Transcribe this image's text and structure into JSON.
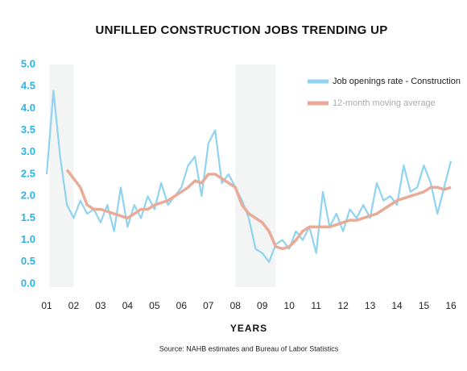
{
  "chart_data": {
    "type": "line",
    "title": "UNFILLED CONSTRUCTION JOBS TRENDING UP",
    "x_label": "YEARS",
    "source": "Source: NAHB estimates and Bureau of Labor Statistics",
    "xlim": [
      1,
      16
    ],
    "ylim": [
      0,
      5
    ],
    "xticks": [
      {
        "value": 1,
        "label": "01"
      },
      {
        "value": 2,
        "label": "02"
      },
      {
        "value": 3,
        "label": "03"
      },
      {
        "value": 4,
        "label": "04"
      },
      {
        "value": 5,
        "label": "05"
      },
      {
        "value": 6,
        "label": "06"
      },
      {
        "value": 7,
        "label": "07"
      },
      {
        "value": 8,
        "label": "08"
      },
      {
        "value": 9,
        "label": "09"
      },
      {
        "value": 10,
        "label": "10"
      },
      {
        "value": 11,
        "label": "11"
      },
      {
        "value": 12,
        "label": "12"
      },
      {
        "value": 13,
        "label": "13"
      },
      {
        "value": 14,
        "label": "14"
      },
      {
        "value": 15,
        "label": "15"
      },
      {
        "value": 16,
        "label": "16"
      }
    ],
    "yticks": [
      {
        "value": 0,
        "label": "0.0"
      },
      {
        "value": 0.5,
        "label": "0.5"
      },
      {
        "value": 1,
        "label": "1.0"
      },
      {
        "value": 1.5,
        "label": "1.5"
      },
      {
        "value": 2,
        "label": "2.0"
      },
      {
        "value": 2.5,
        "label": "2.5"
      },
      {
        "value": 3,
        "label": "3.0"
      },
      {
        "value": 3.5,
        "label": "3.5"
      },
      {
        "value": 4,
        "label": "4.0"
      },
      {
        "value": 4.5,
        "label": "4.5"
      },
      {
        "value": 5,
        "label": "5.0"
      }
    ],
    "shaded_ranges": [
      [
        1.1,
        2.0
      ],
      [
        8.0,
        9.5
      ]
    ],
    "legend": "upper right",
    "x": [
      1,
      1.25,
      1.5,
      1.75,
      2,
      2.25,
      2.5,
      2.75,
      3,
      3.25,
      3.5,
      3.75,
      4,
      4.25,
      4.5,
      4.75,
      5,
      5.25,
      5.5,
      5.75,
      6,
      6.25,
      6.5,
      6.75,
      7,
      7.25,
      7.5,
      7.75,
      8,
      8.25,
      8.5,
      8.75,
      9,
      9.25,
      9.5,
      9.75,
      10,
      10.25,
      10.5,
      10.75,
      11,
      11.25,
      11.5,
      11.75,
      12,
      12.25,
      12.5,
      12.75,
      13,
      13.25,
      13.5,
      13.75,
      14,
      14.25,
      14.5,
      14.75,
      15,
      15.25,
      15.5,
      15.75,
      16
    ],
    "series": [
      {
        "name": "Job openings rate - Construction",
        "color": "#8fd3f0",
        "values": [
          2.5,
          4.4,
          2.9,
          1.8,
          1.5,
          1.9,
          1.6,
          1.7,
          1.4,
          1.8,
          1.2,
          2.2,
          1.3,
          1.8,
          1.5,
          2.0,
          1.7,
          2.3,
          1.8,
          2.0,
          2.2,
          2.7,
          2.9,
          2.0,
          3.2,
          3.5,
          2.3,
          2.5,
          2.2,
          1.9,
          1.5,
          0.8,
          0.7,
          0.5,
          0.9,
          1.0,
          0.8,
          1.2,
          1.0,
          1.3,
          0.7,
          2.1,
          1.3,
          1.6,
          1.2,
          1.7,
          1.5,
          1.8,
          1.5,
          2.3,
          1.9,
          2.0,
          1.8,
          2.7,
          2.1,
          2.2,
          2.7,
          2.3,
          1.6,
          2.2,
          2.8
        ]
      },
      {
        "name": "12-month moving average",
        "color": "#e8ab98",
        "values": [
          null,
          null,
          null,
          2.6,
          2.4,
          2.2,
          1.8,
          1.7,
          1.7,
          1.65,
          1.6,
          1.55,
          1.5,
          1.6,
          1.7,
          1.7,
          1.8,
          1.85,
          1.9,
          2.0,
          2.1,
          2.2,
          2.35,
          2.3,
          2.5,
          2.5,
          2.4,
          2.3,
          2.2,
          1.8,
          1.6,
          1.5,
          1.4,
          1.2,
          0.85,
          0.8,
          0.85,
          1.0,
          1.2,
          1.3,
          1.3,
          1.3,
          1.3,
          1.35,
          1.4,
          1.45,
          1.45,
          1.5,
          1.55,
          1.6,
          1.7,
          1.8,
          1.9,
          1.95,
          2.0,
          2.05,
          2.1,
          2.2,
          2.2,
          2.15,
          2.2
        ]
      }
    ]
  }
}
